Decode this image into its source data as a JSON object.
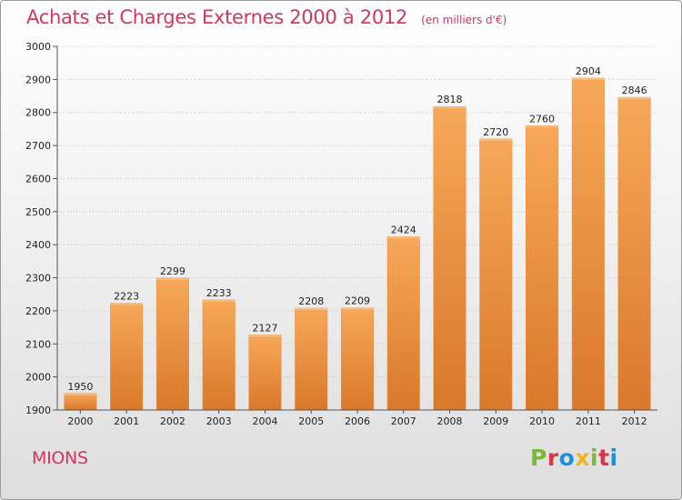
{
  "header": {
    "title": "Achats et Charges Externes 2000 à 2012",
    "unit": "(en milliers d'€)"
  },
  "footer": {
    "commune": "MIONS",
    "logo": "Proxiti"
  },
  "colors": {
    "bar_light": "#f7a85a",
    "bar_dark": "#d9782a",
    "title": "#d6365e",
    "logo_letters": [
      "#7ab83a",
      "#e0334b",
      "#1f8fd6",
      "#f3b320",
      "#7ab83a",
      "#e0334b",
      "#1f8fd6"
    ]
  },
  "chart_data": {
    "type": "bar",
    "title": "Achats et Charges Externes 2000 à 2012",
    "subtitle": "(en milliers d'€)",
    "xlabel": "",
    "ylabel": "",
    "categories": [
      "2000",
      "2001",
      "2002",
      "2003",
      "2004",
      "2005",
      "2006",
      "2007",
      "2008",
      "2009",
      "2010",
      "2011",
      "2012"
    ],
    "values": [
      1950,
      2223,
      2299,
      2233,
      2127,
      2208,
      2209,
      2424,
      2818,
      2720,
      2760,
      2904,
      2846
    ],
    "ylim": [
      1900,
      3000
    ],
    "yticks": [
      1900,
      2000,
      2100,
      2200,
      2300,
      2400,
      2500,
      2600,
      2700,
      2800,
      2900,
      3000
    ],
    "grid": true,
    "legend": "none"
  }
}
